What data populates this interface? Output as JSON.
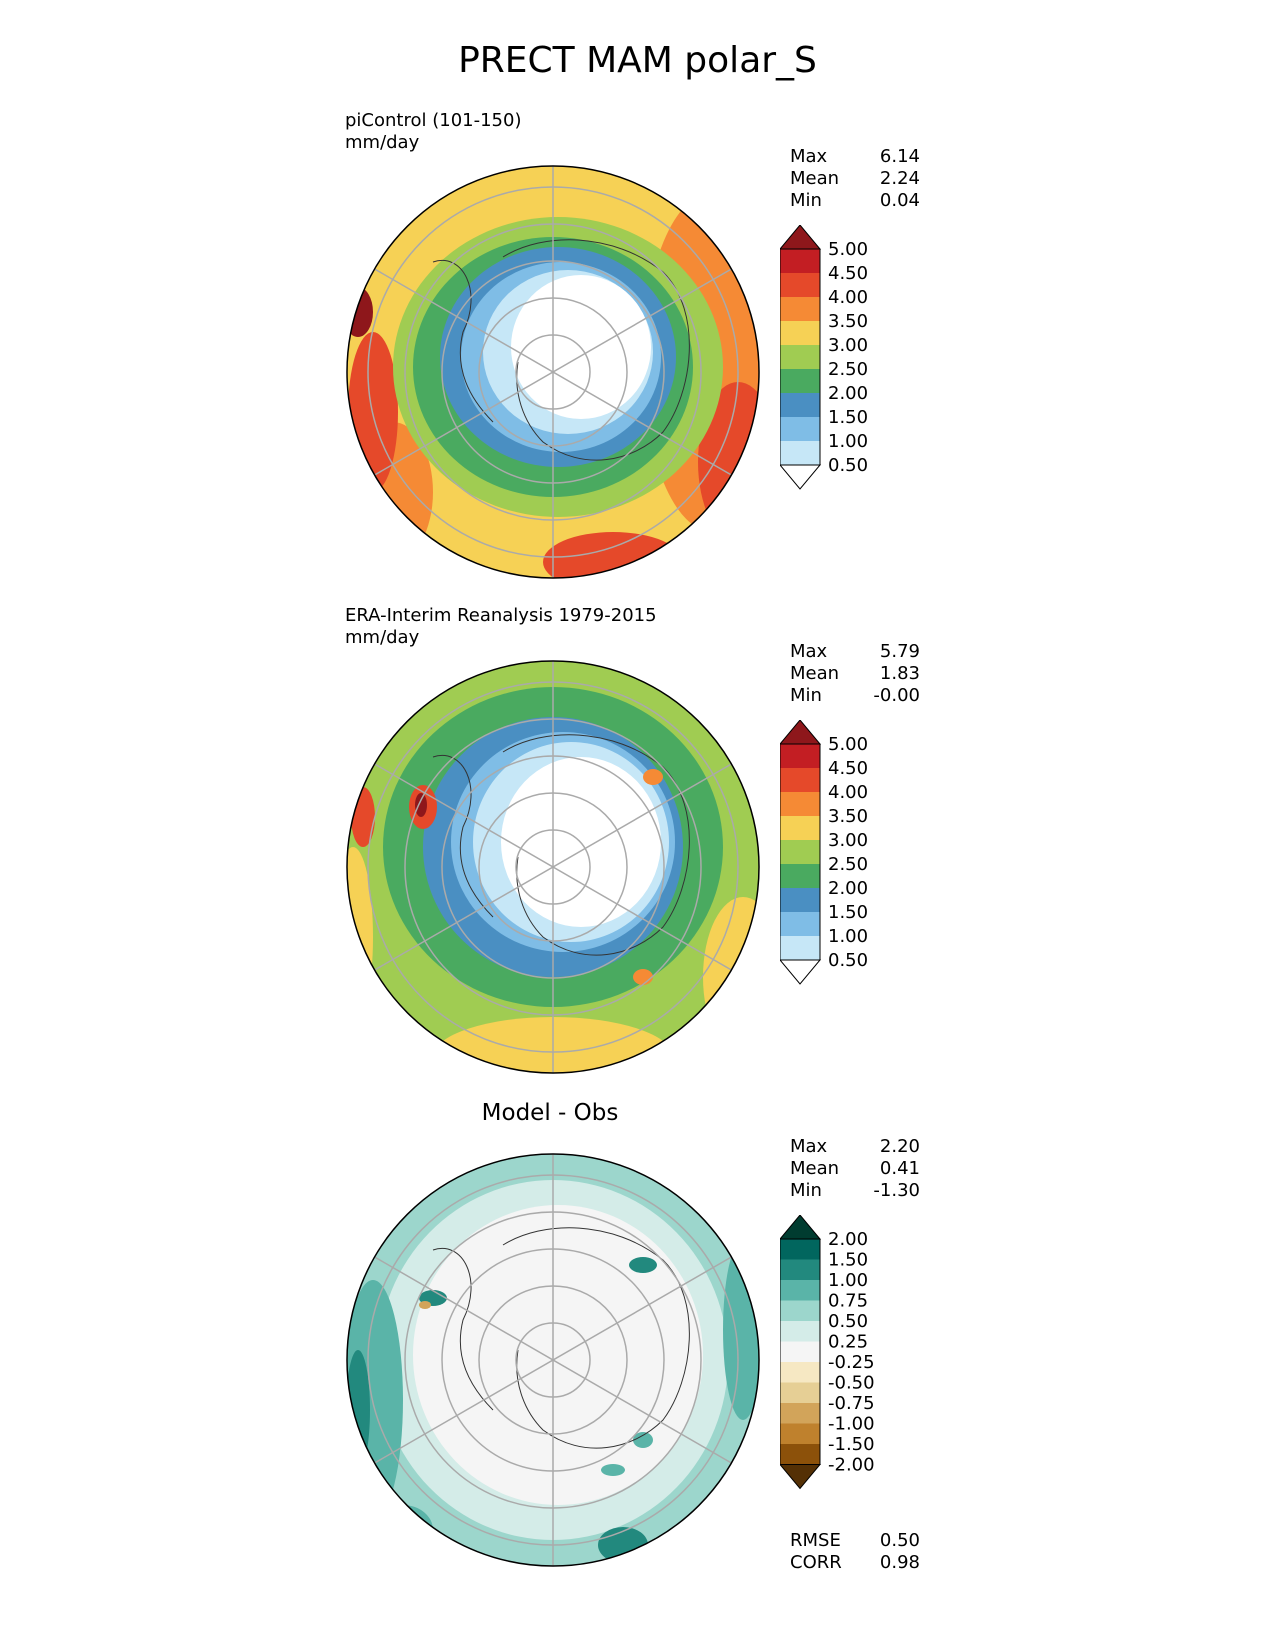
{
  "title": "PRECT MAM polar_S",
  "panels": [
    {
      "id": "model",
      "subtitle_line1": "piControl (101-150)",
      "subtitle_line2": "mm/day",
      "stats": [
        {
          "label": "Max",
          "value": "6.14"
        },
        {
          "label": "Mean",
          "value": "2.24"
        },
        {
          "label": "Min",
          "value": "0.04"
        }
      ]
    },
    {
      "id": "obs",
      "subtitle_line1": "ERA-Interim Reanalysis 1979-2015",
      "subtitle_line2": "mm/day",
      "stats": [
        {
          "label": "Max",
          "value": "5.79"
        },
        {
          "label": "Mean",
          "value": "1.83"
        },
        {
          "label": "Min",
          "value": "-0.00"
        }
      ]
    },
    {
      "id": "diff",
      "title": "Model - Obs",
      "stats": [
        {
          "label": "Max",
          "value": "2.20"
        },
        {
          "label": "Mean",
          "value": "0.41"
        },
        {
          "label": "Min",
          "value": "-1.30"
        }
      ],
      "footer": [
        {
          "label": "RMSE",
          "value": "0.50"
        },
        {
          "label": "CORR",
          "value": "0.98"
        }
      ]
    }
  ],
  "colorbar_precip": {
    "levels": [
      "0.50",
      "1.00",
      "1.50",
      "2.00",
      "2.50",
      "3.00",
      "3.50",
      "4.00",
      "4.50",
      "5.00"
    ],
    "colors": [
      "#ffffff",
      "#c6e7f7",
      "#7fbde6",
      "#4a8fc2",
      "#4aaa60",
      "#a0cc52",
      "#f6d155",
      "#f58a35",
      "#e5492a",
      "#c31e23",
      "#8e171b"
    ]
  },
  "colorbar_diff": {
    "levels": [
      "-2.00",
      "-1.50",
      "-1.00",
      "-0.75",
      "-0.50",
      "-0.25",
      "0.25",
      "0.50",
      "0.75",
      "1.00",
      "1.50",
      "2.00"
    ],
    "colors": [
      "#543005",
      "#8c510a",
      "#bf812d",
      "#d2a45a",
      "#e6cf95",
      "#f6e8c3",
      "#f5f5f5",
      "#d4ece8",
      "#9cd6cc",
      "#5ab4a8",
      "#22897e",
      "#01665e",
      "#003c30"
    ]
  }
}
